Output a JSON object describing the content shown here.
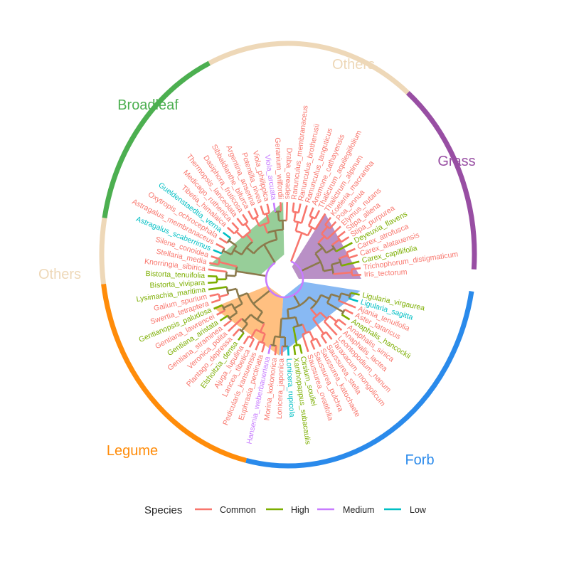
{
  "chart_data": {
    "type": "circular-tree",
    "legend": {
      "title": "Species",
      "position": "bottom",
      "items": [
        {
          "label": "Common",
          "color": "#F8766D"
        },
        {
          "label": "High",
          "color": "#7CAE00"
        },
        {
          "label": "Medium",
          "color": "#C77CFF"
        },
        {
          "label": "Low",
          "color": "#00BFC4"
        }
      ]
    },
    "groups": [
      {
        "name": "Others",
        "color": "#EED8B8",
        "arc_deg": [
          -25,
          40
        ]
      },
      {
        "name": "Grass",
        "color": "#984EA3",
        "arc_deg": [
          40,
          94
        ]
      },
      {
        "name": "Forb",
        "color": "#2A8AEB",
        "arc_deg": [
          100,
          193
        ]
      },
      {
        "name": "Legume",
        "color": "#FF8C0A",
        "arc_deg": [
          193,
          262
        ]
      },
      {
        "name": "Others",
        "color": "#EED8B8",
        "arc_deg": [
          262,
          280
        ]
      },
      {
        "name": "Broadleaf",
        "color": "#4CAF50",
        "arc_deg": [
          280,
          335
        ]
      }
    ],
    "tips": [
      {
        "name": "Ranunculus_membranaceus",
        "category": "Common"
      },
      {
        "name": "Ranunculus_brotherusii",
        "category": "Common"
      },
      {
        "name": "Ranunculus_tanguticus",
        "category": "Common"
      },
      {
        "name": "Anemone_cathayensis",
        "category": "Common"
      },
      {
        "name": "Thalictrum_aquilegiifolium",
        "category": "Common"
      },
      {
        "name": "Thalictrum_alpinum",
        "category": "Common"
      },
      {
        "name": "Koeleria_macrantha",
        "category": "Common"
      },
      {
        "name": "Poa_annua",
        "category": "Common"
      },
      {
        "name": "Elymus_nutans",
        "category": "Common"
      },
      {
        "name": "Stipa_aliena",
        "category": "Common"
      },
      {
        "name": "Stipa_purpurea",
        "category": "Common"
      },
      {
        "name": "Deyeuxia_flavens",
        "category": "High"
      },
      {
        "name": "Carex_atrofusca",
        "category": "Common"
      },
      {
        "name": "Carex_alatauensis",
        "category": "Common"
      },
      {
        "name": "Carex_capillifolia",
        "category": "High"
      },
      {
        "name": "Trichophorum_distigmaticum",
        "category": "Common"
      },
      {
        "name": "Iris_tectorum",
        "category": "Common"
      },
      {
        "name": "Ligularia_virgaurea",
        "category": "High"
      },
      {
        "name": "Ligularia_sagitta",
        "category": "Low"
      },
      {
        "name": "Ajania_tenuifolia",
        "category": "Common"
      },
      {
        "name": "Aster_tataricus",
        "category": "Common"
      },
      {
        "name": "Anaphalis_hancockii",
        "category": "High"
      },
      {
        "name": "Anaphalis_sinica",
        "category": "Common"
      },
      {
        "name": "Anaphalis_lactea",
        "category": "Common"
      },
      {
        "name": "Leontopodium_nanum",
        "category": "Common"
      },
      {
        "name": "Taraxacum_mongolicum",
        "category": "Common"
      },
      {
        "name": "Saussurea_stella",
        "category": "Common"
      },
      {
        "name": "Saussurea_katochaete",
        "category": "Common"
      },
      {
        "name": "Saussurea_pulchra",
        "category": "Common"
      },
      {
        "name": "Saussurea_ovatifolia",
        "category": "Common"
      },
      {
        "name": "Cirsium_souliei",
        "category": "High"
      },
      {
        "name": "Xanthopappus_subacaulis",
        "category": "High"
      },
      {
        "name": "Lonicera_rupicola",
        "category": "Low"
      },
      {
        "name": "Lonicera_japonica",
        "category": "Common"
      },
      {
        "name": "Morina_kokonorica",
        "category": "Common"
      },
      {
        "name": "Hansenia_weberbaueriana",
        "category": "Medium"
      },
      {
        "name": "Euphrasia_pectinata",
        "category": "Common"
      },
      {
        "name": "Pedicularis_kansuensis",
        "category": "Common"
      },
      {
        "name": "Lancea_tibetica",
        "category": "Common"
      },
      {
        "name": "Ajuga_lupulina",
        "category": "Common"
      },
      {
        "name": "Elsholtzia_densa",
        "category": "High"
      },
      {
        "name": "Plantago_depressa",
        "category": "Common"
      },
      {
        "name": "Veronica_polita",
        "category": "Common"
      },
      {
        "name": "Gentiana_straminea",
        "category": "Common"
      },
      {
        "name": "Gentiana_aristata",
        "category": "High"
      },
      {
        "name": "Gentiana_lawrencei",
        "category": "Common"
      },
      {
        "name": "Gentianopsis_paludosa",
        "category": "High"
      },
      {
        "name": "Swertia_tetraptera",
        "category": "Common"
      },
      {
        "name": "Galium_spurium",
        "category": "Common"
      },
      {
        "name": "Lysimachia_maritima",
        "category": "High"
      },
      {
        "name": "Bistorta_vivipara",
        "category": "High"
      },
      {
        "name": "Bistorta_tenuifolia",
        "category": "High"
      },
      {
        "name": "Knorringia_sibirica",
        "category": "Common"
      },
      {
        "name": "Stellaria_media",
        "category": "Common"
      },
      {
        "name": "Silene_conoidea",
        "category": "Common"
      },
      {
        "name": "Astragalus_scaberrimus",
        "category": "Low"
      },
      {
        "name": "Astragalus_membranaceus",
        "category": "Common"
      },
      {
        "name": "Oxytropis_ochrocephala",
        "category": "Common"
      },
      {
        "name": "Gueldenstaedtia_verna",
        "category": "Low"
      },
      {
        "name": "Tibetia_himalaica",
        "category": "Common"
      },
      {
        "name": "Medicago_ruthenica",
        "category": "Common"
      },
      {
        "name": "Thermopsis_lanceolata",
        "category": "Common"
      },
      {
        "name": "Dasiphora_fruticosa",
        "category": "Common"
      },
      {
        "name": "Sibbaldianthe_bifurca",
        "category": "Common"
      },
      {
        "name": "Argentina_anserina",
        "category": "Common"
      },
      {
        "name": "Potentilla_nivea",
        "category": "Common"
      },
      {
        "name": "Viola_philippica",
        "category": "Common"
      },
      {
        "name": "Viola_arcuata",
        "category": "Medium"
      },
      {
        "name": "Geranium_wilfordii",
        "category": "Common"
      },
      {
        "name": "Draba_oreades",
        "category": "Common"
      }
    ]
  }
}
